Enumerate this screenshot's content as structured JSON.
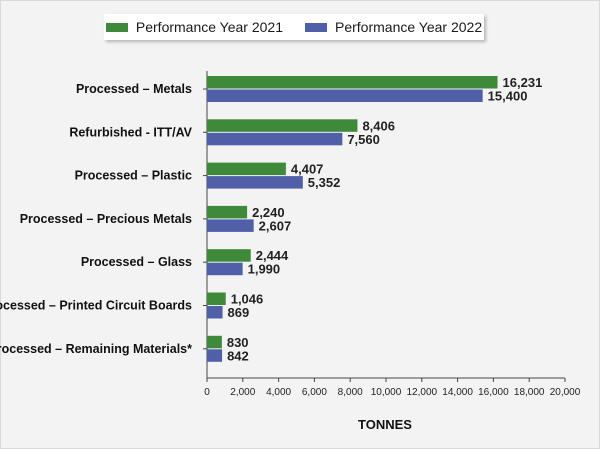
{
  "legend": {
    "items": [
      {
        "label": "Performance Year 2021",
        "color": "#3f8a3a"
      },
      {
        "label": "Performance Year 2022",
        "color": "#4f5fa8"
      }
    ]
  },
  "chart_data": {
    "type": "bar",
    "orientation": "horizontal",
    "categories": [
      "Processed – Metals",
      "Refurbished - ITT/AV",
      "Processed – Plastic",
      "Processed – Precious Metals",
      "Processed – Glass",
      "Processed – Printed Circuit Boards",
      "Processed – Remaining Materials*"
    ],
    "series": [
      {
        "name": "Performance Year 2021",
        "color": "#3f8a3a",
        "values": [
          16231,
          8406,
          4407,
          2240,
          2444,
          1046,
          830
        ],
        "labels": [
          "16,231",
          "8,406",
          "4,407",
          "2,240",
          "2,444",
          "1,046",
          "830"
        ]
      },
      {
        "name": "Performance Year 2022",
        "color": "#4f5fa8",
        "values": [
          15400,
          7560,
          5352,
          2607,
          1990,
          869,
          842
        ],
        "labels": [
          "15,400",
          "7,560",
          "5,352",
          "2,607",
          "1,990",
          "869",
          "842"
        ]
      }
    ],
    "xlabel": "TONNES",
    "ylabel": "",
    "xlim": [
      0,
      20000
    ],
    "xticks": [
      0,
      2000,
      4000,
      6000,
      8000,
      10000,
      12000,
      14000,
      16000,
      18000,
      20000
    ],
    "xtick_labels": [
      "0",
      "2,000",
      "4,000",
      "6,000",
      "8,000",
      "10,000",
      "12,000",
      "14,000",
      "16,000",
      "18,000",
      "20,000"
    ],
    "grid": false,
    "legend_position": "top"
  }
}
